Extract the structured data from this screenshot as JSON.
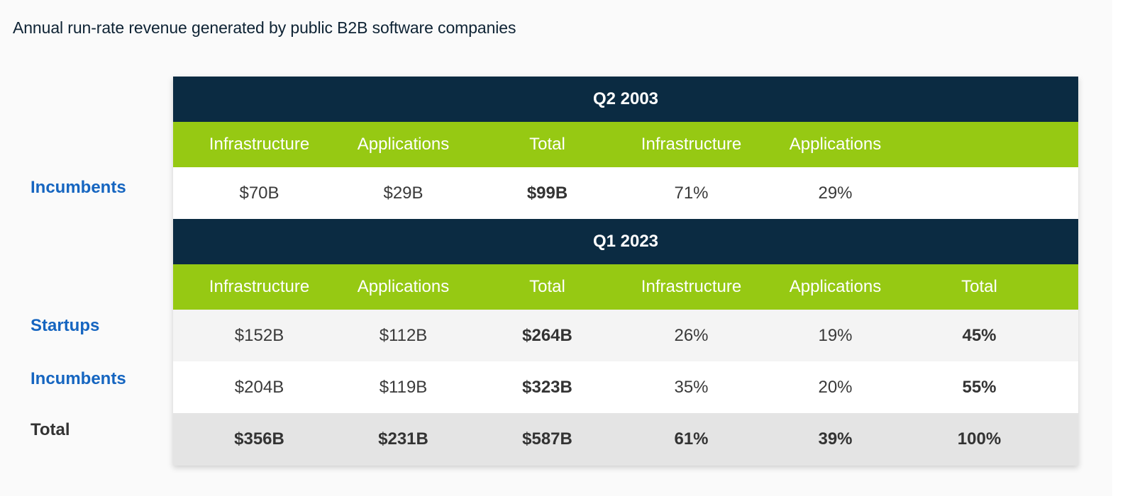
{
  "title": "Annual run-rate revenue generated by public B2B software companies",
  "chart_data": {
    "type": "table",
    "title": "Annual run-rate revenue generated by public B2B software companies",
    "sections": [
      {
        "period": "Q2 2003",
        "columns": [
          "Infrastructure",
          "Applications",
          "Total",
          "Infrastructure",
          "Applications",
          ""
        ],
        "rows": [
          {
            "label": "Incumbents",
            "cells": [
              "$70B",
              "$29B",
              "$99B",
              "71%",
              "29%",
              ""
            ]
          }
        ]
      },
      {
        "period": "Q1 2023",
        "columns": [
          "Infrastructure",
          "Applications",
          "Total",
          "Infrastructure",
          "Applications",
          "Total"
        ],
        "rows": [
          {
            "label": "Startups",
            "cells": [
              "$152B",
              "$112B",
              "$264B",
              "26%",
              "19%",
              "45%"
            ]
          },
          {
            "label": "Incumbents",
            "cells": [
              "$204B",
              "$119B",
              "$323B",
              "35%",
              "20%",
              "55%"
            ]
          },
          {
            "label": "Total",
            "cells": [
              "$356B",
              "$231B",
              "$587B",
              "61%",
              "39%",
              "100%"
            ]
          }
        ]
      }
    ]
  }
}
